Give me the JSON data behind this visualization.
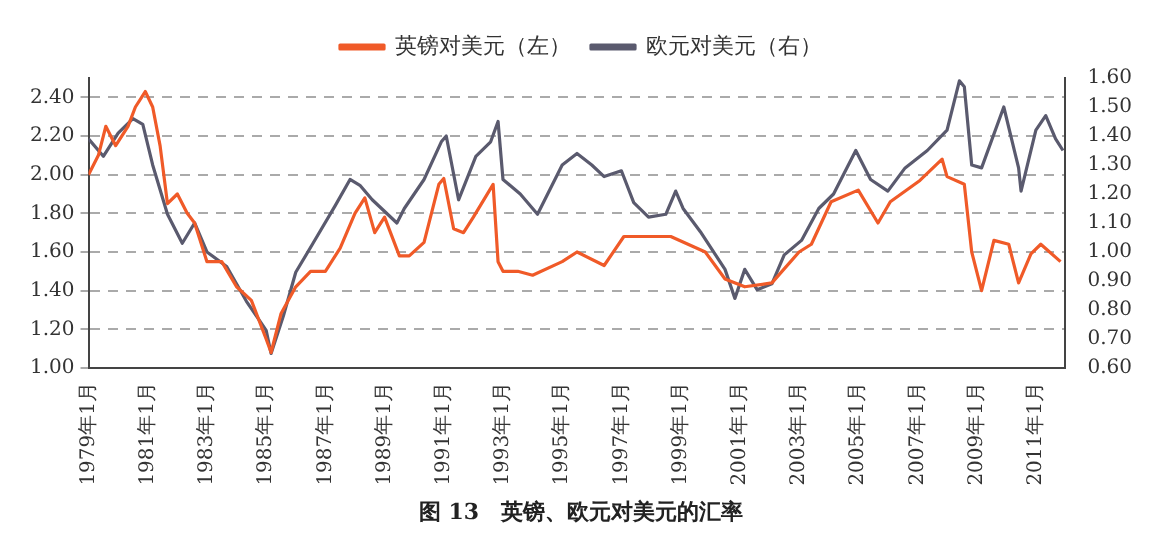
{
  "chart_data": {
    "type": "line",
    "title": "图 13　英镑、欧元对美元的汇率",
    "legend": "top",
    "grid": "y",
    "marker": "none",
    "line_style": "solid",
    "xlim": [
      "1979-01",
      "2012-01"
    ],
    "xticks": [
      {
        "value": "1979-01",
        "label": "1979年1月"
      },
      {
        "value": "1981-01",
        "label": "1981年1月"
      },
      {
        "value": "1983-01",
        "label": "1983年1月"
      },
      {
        "value": "1985-01",
        "label": "1985年1月"
      },
      {
        "value": "1987-01",
        "label": "1987年1月"
      },
      {
        "value": "1989-01",
        "label": "1989年1月"
      },
      {
        "value": "1991-01",
        "label": "1991年1月"
      },
      {
        "value": "1993-01",
        "label": "1993年1月"
      },
      {
        "value": "1995-01",
        "label": "1995年1月"
      },
      {
        "value": "1997-01",
        "label": "1997年1月"
      },
      {
        "value": "1999-01",
        "label": "1999年1月"
      },
      {
        "value": "2001-01",
        "label": "2001年1月"
      },
      {
        "value": "2003-01",
        "label": "2003年1月"
      },
      {
        "value": "2005-01",
        "label": "2005年1月"
      },
      {
        "value": "2007-01",
        "label": "2007年1月"
      },
      {
        "value": "2009-01",
        "label": "2009年1月"
      },
      {
        "value": "2011-01",
        "label": "2011年1月"
      }
    ],
    "ylim": [
      1,
      2.5
    ],
    "yticks": [
      {
        "value": 1,
        "label": "1.00"
      },
      {
        "value": 1.2,
        "label": "1.20"
      },
      {
        "value": 1.4,
        "label": "1.40"
      },
      {
        "value": 1.6,
        "label": "1.60"
      },
      {
        "value": 1.8,
        "label": "1.80"
      },
      {
        "value": 2,
        "label": "2.00"
      },
      {
        "value": 2.2,
        "label": "2.20"
      },
      {
        "value": 2.4,
        "label": "2.40"
      }
    ],
    "y2lim": [
      0.6,
      1.6
    ],
    "y2ticks": [
      {
        "value": 0.6,
        "label": "0.60"
      },
      {
        "value": 0.7,
        "label": "0.70"
      },
      {
        "value": 0.8,
        "label": "0.80"
      },
      {
        "value": 0.9,
        "label": "0.90"
      },
      {
        "value": 1,
        "label": "1.00"
      },
      {
        "value": 1.1,
        "label": "1.10"
      },
      {
        "value": 1.2,
        "label": "1.20"
      },
      {
        "value": 1.3,
        "label": "1.30"
      },
      {
        "value": 1.4,
        "label": "1.40"
      },
      {
        "value": 1.5,
        "label": "1.50"
      },
      {
        "value": 1.6,
        "label": "1.60"
      }
    ],
    "series": [
      {
        "name": "英镑对美元（左）",
        "color": "#f05a28",
        "x": [
          "1979-01",
          "1979-05",
          "1979-08",
          "1979-12",
          "1980-05",
          "1980-08",
          "1980-12",
          "1981-03",
          "1981-06",
          "1981-09",
          "1982-01",
          "1982-05",
          "1982-08",
          "1983-01",
          "1983-07",
          "1984-01",
          "1984-07",
          "1985-01",
          "1985-03",
          "1985-07",
          "1986-01",
          "1986-07",
          "1987-01",
          "1987-07",
          "1988-01",
          "1988-05",
          "1988-09",
          "1989-01",
          "1989-07",
          "1989-11",
          "1990-05",
          "1990-11",
          "1991-01",
          "1991-05",
          "1991-09",
          "1992-01",
          "1992-09",
          "1992-11",
          "1993-01",
          "1993-07",
          "1994-01",
          "1995-01",
          "1995-07",
          "1996-06",
          "1997-02",
          "1998-09",
          "1999-11",
          "2000-07",
          "2001-03",
          "2002-02",
          "2003-01",
          "2003-06",
          "2004-02",
          "2005-01",
          "2005-09",
          "2006-02",
          "2007-02",
          "2007-11",
          "2008-01",
          "2008-08",
          "2008-11",
          "2009-03",
          "2009-08",
          "2010-02",
          "2010-06",
          "2010-11",
          "2011-03",
          "2011-11"
        ],
        "values": [
          2.0,
          2.1,
          2.25,
          2.15,
          2.25,
          2.35,
          2.43,
          2.35,
          2.15,
          1.85,
          1.9,
          1.8,
          1.75,
          1.55,
          1.55,
          1.42,
          1.35,
          1.15,
          1.08,
          1.28,
          1.42,
          1.5,
          1.5,
          1.62,
          1.8,
          1.88,
          1.7,
          1.78,
          1.58,
          1.58,
          1.65,
          1.95,
          1.98,
          1.72,
          1.7,
          1.78,
          1.95,
          1.55,
          1.5,
          1.5,
          1.48,
          1.55,
          1.6,
          1.53,
          1.68,
          1.68,
          1.6,
          1.46,
          1.42,
          1.44,
          1.6,
          1.64,
          1.86,
          1.92,
          1.75,
          1.86,
          1.97,
          2.08,
          1.99,
          1.95,
          1.6,
          1.4,
          1.66,
          1.64,
          1.44,
          1.59,
          1.64,
          1.55
        ]
      },
      {
        "name": "欧元对美元（右）",
        "color": "#5a5a6e",
        "axis": "y2",
        "x": [
          "1979-01",
          "1979-07",
          "1980-01",
          "1980-07",
          "1980-11",
          "1981-03",
          "1981-09",
          "1982-03",
          "1982-08",
          "1983-01",
          "1983-09",
          "1984-05",
          "1985-01",
          "1985-03",
          "1985-08",
          "1986-01",
          "1986-08",
          "1987-05",
          "1987-11",
          "1988-03",
          "1988-08",
          "1989-06",
          "1989-09",
          "1990-05",
          "1990-12",
          "1991-02",
          "1991-07",
          "1992-02",
          "1992-08",
          "1992-11",
          "1993-01",
          "1993-08",
          "1994-03",
          "1995-01",
          "1995-07",
          "1996-01",
          "1996-06",
          "1997-01",
          "1997-06",
          "1997-12",
          "1998-07",
          "1998-11",
          "1999-02",
          "1999-09",
          "2000-07",
          "2000-11",
          "2001-03",
          "2001-08",
          "2002-02",
          "2002-07",
          "2003-02",
          "2003-09",
          "2004-03",
          "2004-12",
          "2005-06",
          "2006-01",
          "2006-08",
          "2007-05",
          "2008-01",
          "2008-06",
          "2008-08",
          "2008-11",
          "2009-03",
          "2009-12",
          "2010-06",
          "2010-07",
          "2011-01",
          "2011-05",
          "2011-09",
          "2011-12"
        ],
        "values": [
          1.39,
          1.33,
          1.41,
          1.46,
          1.44,
          1.3,
          1.13,
          1.03,
          1.1,
          1.0,
          0.95,
          0.83,
          0.73,
          0.65,
          0.78,
          0.93,
          1.03,
          1.16,
          1.25,
          1.23,
          1.18,
          1.1,
          1.15,
          1.25,
          1.38,
          1.4,
          1.18,
          1.33,
          1.38,
          1.45,
          1.25,
          1.2,
          1.13,
          1.3,
          1.34,
          1.3,
          1.26,
          1.28,
          1.17,
          1.12,
          1.13,
          1.21,
          1.15,
          1.07,
          0.94,
          0.84,
          0.94,
          0.87,
          0.89,
          0.99,
          1.04,
          1.15,
          1.2,
          1.35,
          1.25,
          1.21,
          1.29,
          1.35,
          1.42,
          1.59,
          1.57,
          1.3,
          1.29,
          1.5,
          1.29,
          1.21,
          1.42,
          1.47,
          1.39,
          1.35
        ]
      }
    ]
  }
}
